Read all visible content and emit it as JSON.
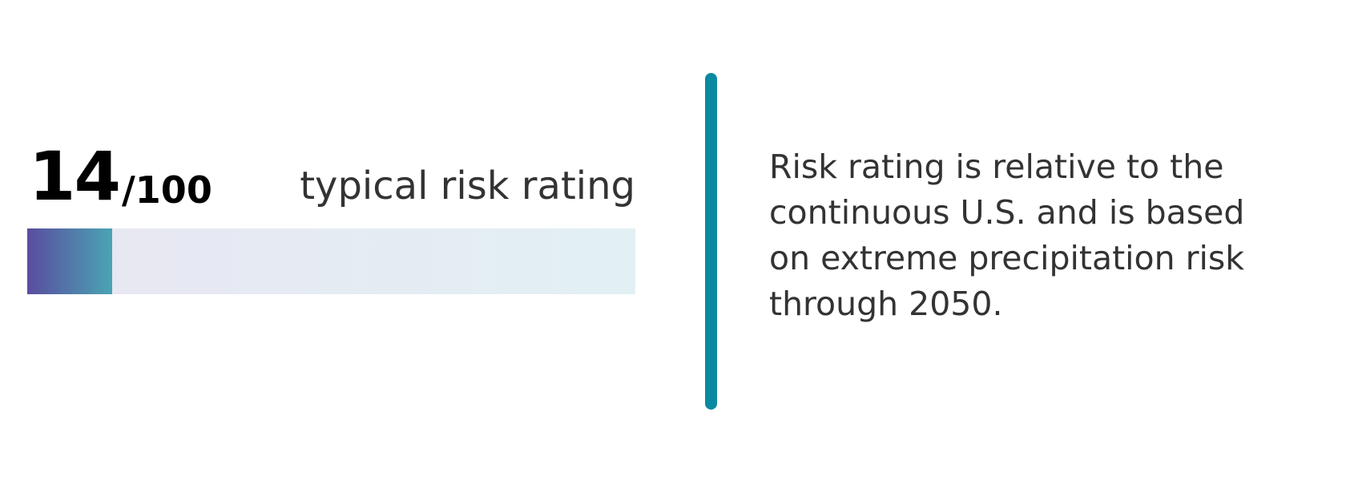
{
  "score": {
    "value": 14
  },
  "max": {
    "value": 100,
    "label": "/100"
  },
  "rating_label": "typical risk rating",
  "description": "Risk rating is relative to the continuous U.S. and is based on extreme precipitation risk through 2050."
}
